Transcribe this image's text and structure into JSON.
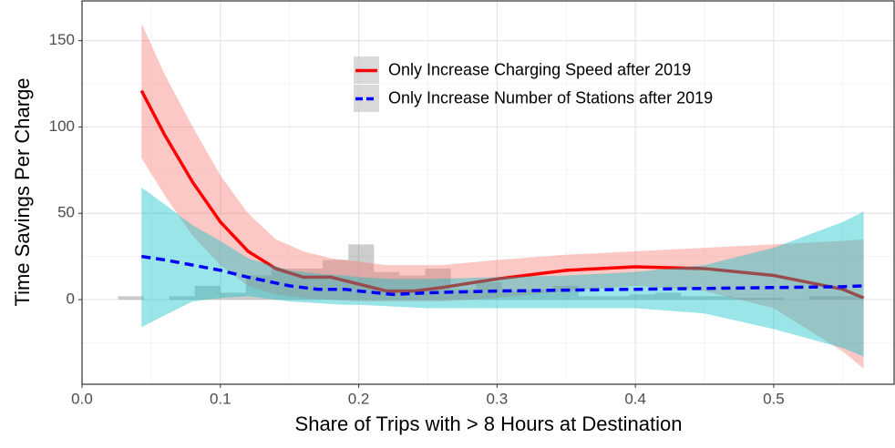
{
  "chart_data": {
    "type": "line",
    "x_label": "Share of Trips with > 8 Hours at Destination",
    "y_label": "Time Savings Per Charge",
    "xlim": [
      0,
      0.587
    ],
    "ylim": [
      -49,
      173
    ],
    "xticks": [
      {
        "value": 0,
        "label": "0.0"
      },
      0.1,
      0.2,
      0.3,
      0.4,
      0.5
    ],
    "yticks": [
      0,
      50,
      100,
      150
    ],
    "xminor": [
      0.05,
      0.15,
      0.25,
      0.35,
      0.45,
      0.55
    ],
    "yminor": [
      -25,
      25,
      75,
      125
    ],
    "grid": true,
    "legend": "top-center",
    "histogram": {
      "color": "#595959",
      "bins": [
        0.026,
        0.0445,
        0.063,
        0.0815,
        0.1,
        0.1185,
        0.137,
        0.1555,
        0.174,
        0.1925,
        0.211,
        0.2295,
        0.248,
        0.2665,
        0.285,
        0.3035,
        0.322,
        0.3405,
        0.359,
        0.3775,
        0.396,
        0.4145,
        0.433,
        0.4515,
        0.47,
        0.4885,
        0.507,
        0.5255,
        0.544,
        0.5625
      ],
      "counts": [
        2,
        0,
        2,
        8,
        4,
        14,
        18,
        18,
        23,
        32,
        16,
        14,
        18,
        6,
        10,
        5,
        6,
        8,
        2,
        2,
        3,
        4,
        2,
        2,
        1,
        1,
        0,
        2,
        2
      ]
    },
    "series": [
      {
        "name": "Only Increase Charging Speed after 2019",
        "color": "#ff0000",
        "band_color": "#f8766d",
        "dash": false,
        "x": [
          0.043,
          0.06,
          0.08,
          0.1,
          0.12,
          0.14,
          0.16,
          0.18,
          0.2,
          0.22,
          0.24,
          0.26,
          0.3,
          0.35,
          0.4,
          0.45,
          0.5,
          0.55,
          0.565
        ],
        "values": [
          121,
          95,
          68,
          45,
          28,
          18,
          13,
          13,
          9,
          5,
          5,
          7,
          12,
          17,
          19,
          18,
          14,
          6,
          1
        ],
        "upper": [
          160,
          130,
          100,
          72,
          50,
          35,
          28,
          24,
          22,
          20,
          20,
          20,
          23,
          26,
          28,
          30,
          32,
          34,
          35
        ],
        "lower": [
          82,
          60,
          37,
          20,
          8,
          3,
          1,
          0,
          -1,
          -1,
          -1,
          -1,
          1,
          5,
          8,
          5,
          -5,
          -30,
          -40
        ]
      },
      {
        "name": "Only Increase Number of Stations after 2019",
        "color": "#0000ff",
        "band_color": "#00bfc4",
        "dash": true,
        "x": [
          0.043,
          0.06,
          0.08,
          0.1,
          0.12,
          0.15,
          0.17,
          0.19,
          0.2,
          0.225,
          0.25,
          0.3,
          0.35,
          0.4,
          0.45,
          0.5,
          0.55,
          0.565
        ],
        "values": [
          25,
          23,
          20,
          17,
          13,
          8,
          6,
          6,
          5,
          3,
          4,
          5,
          5.5,
          6,
          6.5,
          7,
          7.5,
          8
        ],
        "upper": [
          65,
          55,
          43,
          34,
          24,
          17,
          15,
          14,
          13,
          12,
          12,
          13,
          14,
          16,
          20,
          30,
          45,
          51
        ],
        "lower": [
          -16,
          -9,
          -1,
          1,
          2,
          -1,
          -2,
          -3,
          -3,
          -4,
          -5,
          -5,
          -5,
          -5,
          -8,
          -17,
          -28,
          -33
        ]
      }
    ]
  }
}
